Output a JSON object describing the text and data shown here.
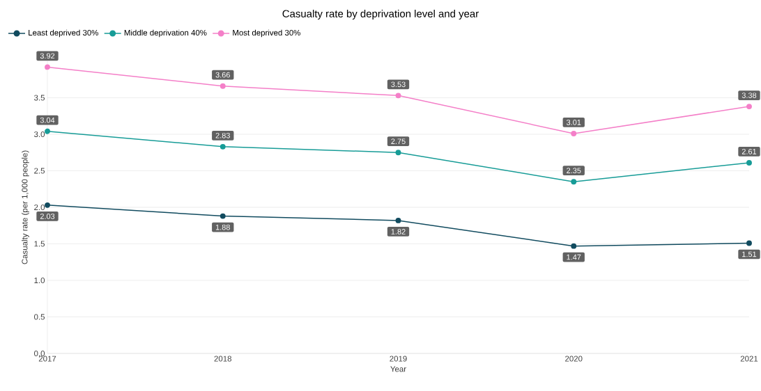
{
  "chart_data": {
    "type": "line",
    "title": "Casualty rate by deprivation level and year",
    "xlabel": "Year",
    "ylabel": "Casualty rate (per 1,000 people)",
    "x": [
      2017,
      2018,
      2019,
      2020,
      2021
    ],
    "series": [
      {
        "name": "Least deprived 30%",
        "color": "#114b5f",
        "values": [
          2.03,
          1.88,
          1.82,
          1.47,
          1.51
        ]
      },
      {
        "name": "Middle deprivation 40%",
        "color": "#179c97",
        "values": [
          3.04,
          2.83,
          2.75,
          2.35,
          2.61
        ]
      },
      {
        "name": "Most deprived 30%",
        "color": "#f47fc8",
        "values": [
          3.92,
          3.66,
          3.53,
          3.01,
          3.38
        ]
      }
    ],
    "xlim": [
      2017,
      2021
    ],
    "xticks": [
      2017,
      2018,
      2019,
      2020,
      2021
    ],
    "ylim": [
      0,
      4
    ],
    "yticks": [
      {
        "value": 0,
        "label": "0.0"
      },
      {
        "value": 0.5,
        "label": "0.5"
      },
      {
        "value": 1,
        "label": "1.0"
      },
      {
        "value": 1.5,
        "label": "1.5"
      },
      {
        "value": 2,
        "label": "2.0"
      },
      {
        "value": 2.5,
        "label": "2.5"
      },
      {
        "value": 3,
        "label": "3.0"
      },
      {
        "value": 3.5,
        "label": "3.5"
      }
    ],
    "grid": "y",
    "legend": "top left",
    "marker": "circle",
    "line_style": "solid",
    "data_labels": true
  }
}
